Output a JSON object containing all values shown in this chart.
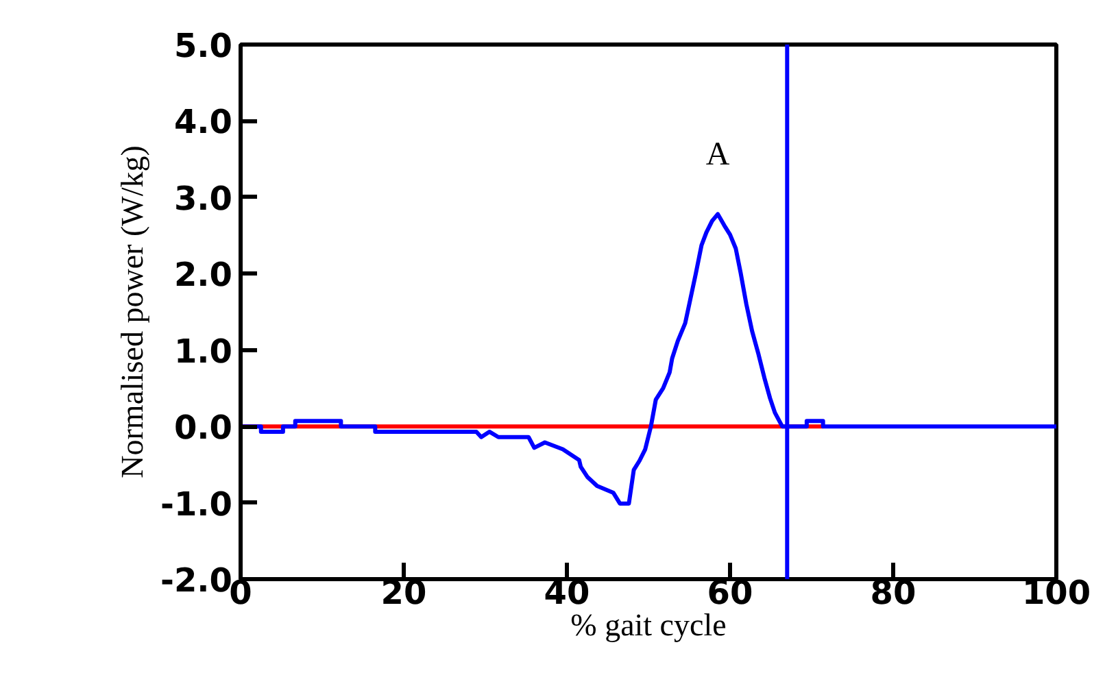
{
  "chart_data": {
    "type": "line",
    "xlabel": "% gait cycle",
    "ylabel": "Normalised power (W/kg)",
    "xlim": [
      0,
      100
    ],
    "ylim": [
      -2.0,
      5.0
    ],
    "xticks": [
      0,
      20,
      40,
      60,
      80,
      100
    ],
    "yticks": [
      {
        "value": -2,
        "label": "-2.0"
      },
      {
        "value": -1,
        "label": "-1.0"
      },
      {
        "value": 0,
        "label": "0.0"
      },
      {
        "value": 1,
        "label": "1.0"
      },
      {
        "value": 2,
        "label": "2.0"
      },
      {
        "value": 3,
        "label": "3.0"
      },
      {
        "value": 4,
        "label": "4.0"
      },
      {
        "value": 5,
        "label": "5.0"
      }
    ],
    "grid": false,
    "line_style": "solid",
    "series": [
      {
        "color": "#ff0000",
        "x": [
          0,
          71.4
        ],
        "values": [
          0,
          0
        ]
      },
      {
        "color": "#0000ff",
        "x": [
          0,
          2.5,
          2.5,
          5.2,
          5.2,
          6.7,
          6.7,
          12.3,
          12.3,
          16.5,
          16.5,
          28.9,
          29.5,
          30.5,
          31.6,
          35.3,
          36,
          37.3,
          39.5,
          41.5,
          41.7,
          42.5,
          43.7,
          45.7,
          46.5,
          47.6,
          48.2,
          48.9,
          49.6,
          50.3,
          50.9,
          51.8,
          52.6,
          52.9,
          53.6,
          54.5,
          55.1,
          55.8,
          56.5,
          57.1,
          57.8,
          58.5,
          59.3,
          60,
          60.7,
          61.3,
          62,
          62.7,
          63.5,
          64.2,
          64.9,
          65.5,
          66.4,
          69.4,
          69.4,
          71.4,
          71.4,
          100
        ],
        "values": [
          0,
          0,
          -0.07,
          -0.07,
          0,
          0,
          0.07,
          0.07,
          0,
          0,
          -0.07,
          -0.07,
          -0.14,
          -0.07,
          -0.14,
          -0.14,
          -0.28,
          -0.21,
          -0.3,
          -0.44,
          -0.53,
          -0.66,
          -0.78,
          -0.87,
          -1.01,
          -1.01,
          -0.57,
          -0.45,
          -0.3,
          0,
          0.35,
          0.5,
          0.71,
          0.89,
          1.12,
          1.35,
          1.65,
          2.0,
          2.37,
          2.54,
          2.69,
          2.78,
          2.63,
          2.51,
          2.33,
          2.01,
          1.6,
          1.25,
          0.94,
          0.64,
          0.37,
          0.18,
          0,
          0,
          0.07,
          0.07,
          0,
          0
        ]
      }
    ],
    "ref_lines": [
      {
        "axis": "x",
        "value": 67,
        "color": "#0000ff"
      }
    ],
    "annotations": [
      "A"
    ]
  }
}
